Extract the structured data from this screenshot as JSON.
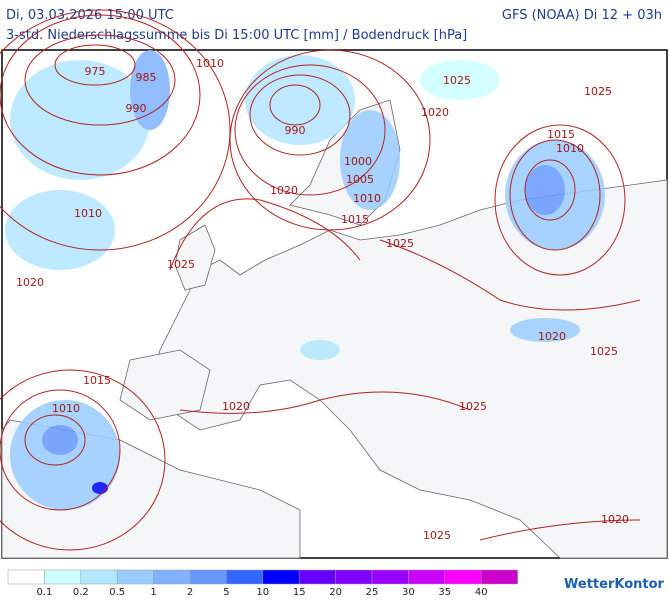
{
  "header": {
    "date": "Di, 03.03.2026 15:00 UTC",
    "model": "GFS (NOAA) Di 12 + 03h",
    "subtitle": "3-std. Niederschlagssumme bis Di 15:00 UTC [mm] / Bodendruck [hPa]"
  },
  "isobar_labels": [
    975,
    985,
    1010,
    990,
    1025,
    1025,
    1020,
    990,
    1015,
    1010,
    1000,
    1005,
    1020,
    1010,
    1015,
    1010,
    1025,
    1025,
    1020,
    1020,
    1025,
    1015,
    1010,
    1020,
    1025,
    1020,
    1025
  ],
  "legend": {
    "colors": [
      "#ffffff",
      "#ccffff",
      "#b3e6ff",
      "#99ccff",
      "#80b3ff",
      "#6699ff",
      "#3366ff",
      "#0000ff",
      "#6600ff",
      "#8000ff",
      "#9900ff",
      "#cc00ff",
      "#ff00ff",
      "#cc00cc"
    ],
    "values": [
      0.1,
      0.2,
      0.5,
      1,
      2,
      5,
      10,
      15,
      20,
      25,
      30,
      35,
      40
    ]
  },
  "logo": "WetterKontor"
}
